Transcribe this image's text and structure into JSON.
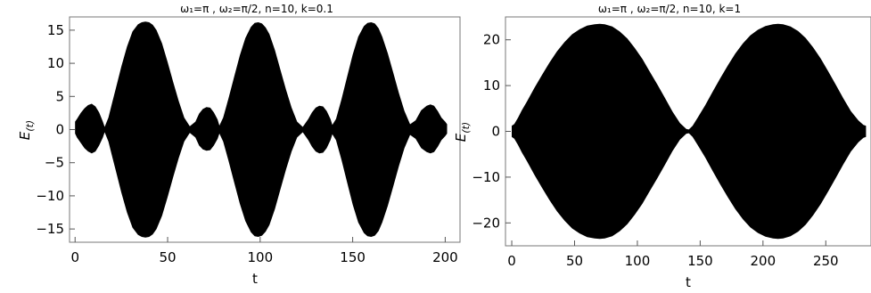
{
  "chart_data": [
    {
      "type": "area",
      "title": "ω₁=π , ω₂=π/2, n=10, k=0.1",
      "xlabel": "t",
      "ylabel_main": "E",
      "ylabel_sub": "(t)",
      "xlim": [
        -3,
        208
      ],
      "ylim": [
        -17,
        17
      ],
      "xticks": [
        0,
        50,
        100,
        150,
        200
      ],
      "yticks": [
        -15,
        -10,
        -5,
        0,
        5,
        10,
        15
      ],
      "series": [
        {
          "x": [
            0,
            1,
            3,
            5,
            7,
            9,
            11,
            13,
            15,
            16,
            18,
            20,
            22,
            25,
            28,
            31,
            34,
            36,
            38,
            40,
            42,
            44,
            47,
            50,
            53,
            56,
            59,
            62,
            65,
            67,
            69,
            71,
            73,
            75,
            77,
            78,
            80,
            83,
            86,
            89,
            92,
            95,
            97,
            99,
            101,
            103,
            105,
            108,
            111,
            114,
            117,
            120,
            123,
            126,
            128,
            130,
            132,
            134,
            136,
            138,
            139,
            141,
            144,
            147,
            150,
            153,
            156,
            158,
            160,
            162,
            164,
            166,
            169,
            172,
            175,
            178,
            181,
            184,
            187,
            190,
            192,
            194,
            196,
            198,
            200,
            201
          ],
          "upper": [
            1.2,
            1.6,
            2.5,
            3.2,
            3.7,
            3.9,
            3.5,
            2.6,
            1.2,
            0.4,
            1.8,
            4.0,
            6.2,
            9.5,
            12.5,
            14.8,
            15.9,
            16.2,
            16.3,
            16.2,
            15.8,
            15.0,
            13.0,
            10.2,
            7.2,
            4.3,
            1.8,
            0.5,
            1.2,
            2.4,
            3.1,
            3.4,
            3.3,
            2.6,
            1.5,
            0.6,
            1.8,
            4.8,
            8.0,
            11.2,
            13.8,
            15.5,
            16.1,
            16.2,
            16.0,
            15.4,
            14.4,
            12.0,
            9.0,
            6.0,
            3.3,
            1.2,
            0.4,
            1.6,
            2.6,
            3.3,
            3.6,
            3.5,
            2.8,
            1.6,
            0.7,
            1.6,
            4.6,
            8.0,
            11.3,
            14.0,
            15.6,
            16.1,
            16.2,
            16.0,
            15.3,
            14.0,
            11.5,
            8.5,
            5.5,
            2.8,
            0.8,
            1.4,
            2.9,
            3.6,
            3.8,
            3.6,
            2.8,
            1.8,
            1.2,
            0.8
          ],
          "lower": [
            -0.6,
            -1.2,
            -2.0,
            -2.8,
            -3.3,
            -3.6,
            -3.3,
            -2.4,
            -1.2,
            -0.4,
            -1.8,
            -4.0,
            -6.2,
            -9.5,
            -12.5,
            -14.8,
            -15.9,
            -16.2,
            -16.3,
            -16.2,
            -15.8,
            -15.0,
            -13.0,
            -10.2,
            -7.2,
            -4.3,
            -1.8,
            -0.5,
            -1.2,
            -2.4,
            -3.0,
            -3.2,
            -3.1,
            -2.4,
            -1.4,
            -0.6,
            -1.8,
            -4.8,
            -8.0,
            -11.2,
            -13.8,
            -15.5,
            -16.1,
            -16.2,
            -16.0,
            -15.4,
            -14.4,
            -12.0,
            -9.0,
            -6.0,
            -3.3,
            -1.2,
            -0.4,
            -1.6,
            -2.6,
            -3.3,
            -3.6,
            -3.5,
            -2.8,
            -1.6,
            -0.7,
            -1.6,
            -4.6,
            -8.0,
            -11.3,
            -14.0,
            -15.6,
            -16.1,
            -16.2,
            -16.0,
            -15.3,
            -14.0,
            -11.5,
            -8.5,
            -5.5,
            -2.8,
            -0.8,
            -1.4,
            -2.8,
            -3.4,
            -3.6,
            -3.4,
            -2.6,
            -1.6,
            -1.0,
            -0.6
          ]
        }
      ]
    },
    {
      "type": "area",
      "title": "ω₁=π , ω₂=π/2, n=10, k=1",
      "xlabel": "t",
      "ylabel_main": "E",
      "ylabel_sub": "(t)",
      "xlim": [
        -5,
        286
      ],
      "ylim": [
        -25,
        25
      ],
      "xticks": [
        0,
        50,
        100,
        150,
        200,
        250
      ],
      "yticks": [
        -20,
        -10,
        0,
        10,
        20
      ],
      "series": [
        {
          "x": [
            0,
            2,
            5,
            8,
            12,
            18,
            24,
            30,
            36,
            42,
            48,
            54,
            60,
            66,
            70,
            74,
            80,
            86,
            92,
            98,
            104,
            110,
            116,
            122,
            128,
            134,
            139,
            141,
            144,
            148,
            154,
            160,
            166,
            172,
            178,
            184,
            190,
            196,
            202,
            208,
            212,
            216,
            222,
            228,
            234,
            240,
            246,
            252,
            258,
            264,
            270,
            276,
            280,
            282
          ],
          "upper": [
            1.2,
            1.6,
            3.0,
            4.6,
            6.5,
            9.5,
            12.3,
            15.0,
            17.5,
            19.5,
            21.2,
            22.3,
            23.1,
            23.4,
            23.5,
            23.4,
            22.9,
            21.8,
            20.3,
            18.2,
            15.8,
            13.0,
            10.2,
            7.3,
            4.3,
            1.8,
            0.5,
            0.4,
            1.2,
            3.0,
            5.7,
            8.7,
            11.6,
            14.4,
            17.0,
            19.2,
            21.0,
            22.2,
            23.0,
            23.4,
            23.5,
            23.4,
            22.9,
            21.9,
            20.4,
            18.3,
            15.9,
            13.1,
            10.2,
            7.2,
            4.4,
            2.4,
            1.4,
            1.2
          ],
          "lower": [
            -1.2,
            -1.6,
            -3.0,
            -4.6,
            -6.5,
            -9.5,
            -12.3,
            -15.0,
            -17.5,
            -19.5,
            -21.2,
            -22.3,
            -23.1,
            -23.4,
            -23.5,
            -23.4,
            -22.9,
            -21.8,
            -20.3,
            -18.2,
            -15.8,
            -13.0,
            -10.2,
            -7.3,
            -4.3,
            -1.8,
            -0.5,
            -0.4,
            -1.2,
            -3.0,
            -5.7,
            -8.7,
            -11.6,
            -14.4,
            -17.0,
            -19.2,
            -21.0,
            -22.2,
            -23.0,
            -23.4,
            -23.5,
            -23.4,
            -22.9,
            -21.9,
            -20.4,
            -18.3,
            -15.9,
            -13.1,
            -10.2,
            -7.2,
            -4.4,
            -2.4,
            -1.4,
            -1.2
          ]
        }
      ]
    }
  ]
}
